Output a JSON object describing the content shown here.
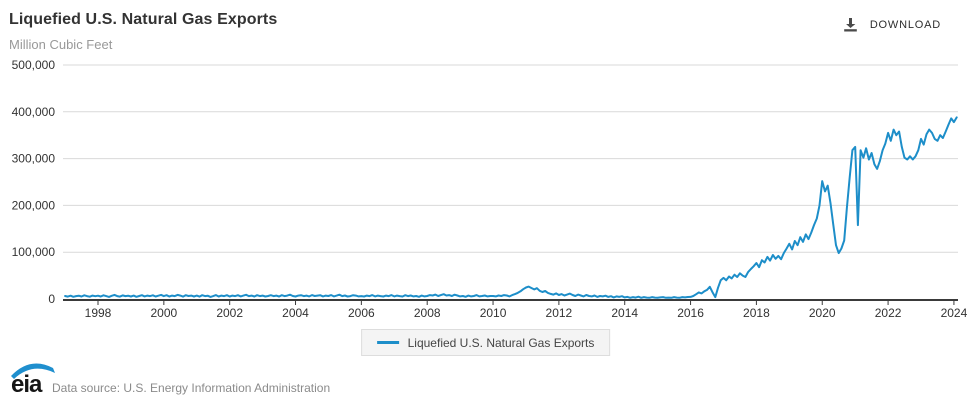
{
  "header": {
    "title": "Liquefied U.S. Natural Gas Exports",
    "subtitle": "Million Cubic Feet"
  },
  "toolbar": {
    "download_label": "DOWNLOAD"
  },
  "legend": {
    "label": "Liquefied U.S. Natural Gas Exports"
  },
  "footer": {
    "logo_text": "eia",
    "data_source": "Data source: U.S. Energy Information Administration"
  },
  "icons": {
    "download": "arrow-down-into-tray",
    "logo_swoosh": "blue-arc"
  },
  "colors": {
    "line": "#1d8ec9",
    "grid": "#d9d9d9",
    "axis": "#3a3a3a",
    "axis_label": "#333333",
    "legend_bg": "#f4f4f4",
    "legend_border": "#dddddd",
    "title": "#333333",
    "subtitle": "#999999",
    "logo_swoosh": "#1f8fce"
  },
  "chart_data": {
    "type": "line",
    "title": "Liquefied U.S. Natural Gas Exports",
    "xlabel": "",
    "ylabel": "Million Cubic Feet",
    "unit": "Million Cubic Feet",
    "grid": "horizontal",
    "legend_position": "bottom",
    "ylim": [
      0,
      500000
    ],
    "xlim_years": [
      1997,
      2024.2
    ],
    "x_tick_years": [
      1998,
      2000,
      2002,
      2004,
      2006,
      2008,
      2010,
      2012,
      2014,
      2016,
      2018,
      2020,
      2022,
      2024
    ],
    "y_ticks": [
      {
        "value": 0,
        "label": "0"
      },
      {
        "value": 100000,
        "label": "100,000"
      },
      {
        "value": 200000,
        "label": "200,000"
      },
      {
        "value": 300000,
        "label": "300,000"
      },
      {
        "value": 400000,
        "label": "400,000"
      },
      {
        "value": 500000,
        "label": "500,000"
      }
    ],
    "series": [
      {
        "name": "Liquefied U.S. Natural Gas Exports",
        "frequency": "monthly",
        "start_year": 1997,
        "start_month": 1,
        "values": [
          6500,
          5200,
          7100,
          4800,
          6300,
          7000,
          5400,
          7800,
          6100,
          5000,
          7200,
          6000,
          7100,
          5300,
          7900,
          6200,
          4500,
          6800,
          8700,
          6300,
          5100,
          7700,
          6200,
          7000,
          5400,
          7200,
          4600,
          6400,
          8100,
          5500,
          7300,
          6200,
          8000,
          5300,
          7100,
          8800,
          6300,
          8200,
          5400,
          7200,
          6100,
          8800,
          7300,
          5200,
          8100,
          6400,
          7200,
          5400,
          7300,
          5100,
          8200,
          6300,
          7100,
          4500,
          6200,
          8300,
          5400,
          7200,
          6100,
          8200,
          5300,
          7200,
          6200,
          8100,
          5500,
          7300,
          9000,
          6200,
          7300,
          5400,
          8200,
          6300,
          7200,
          5300,
          6400,
          8200,
          6300,
          7200,
          5400,
          8100,
          6200,
          7300,
          9100,
          6400,
          5400,
          7300,
          8200,
          6300,
          7200,
          5500,
          8300,
          6400,
          7200,
          8100,
          5500,
          7300,
          6400,
          8300,
          5500,
          7200,
          9200,
          6300,
          7400,
          5400,
          6300,
          8200,
          7300,
          5500,
          6200,
          5400,
          7300,
          6200,
          8400,
          5500,
          7200,
          6300,
          5400,
          7300,
          6200,
          8300,
          5500,
          7200,
          6300,
          5400,
          8200,
          6300,
          7400,
          5500,
          6400,
          4800,
          7300,
          5600,
          6400,
          8300,
          7400,
          9300,
          6500,
          8400,
          10200,
          7400,
          8300,
          6500,
          9200,
          7400,
          5600,
          6400,
          4700,
          7300,
          5500,
          6400,
          8300,
          5600,
          6500,
          7400,
          5600,
          6400,
          6500,
          5600,
          7400,
          6500,
          8400,
          7400,
          5600,
          8300,
          10500,
          13000,
          16500,
          21000,
          24500,
          26500,
          23500,
          20500,
          23000,
          17500,
          15000,
          17000,
          13000,
          11000,
          9500,
          12000,
          8500,
          10500,
          7500,
          9500,
          11500,
          8500,
          6500,
          9500,
          7500,
          5500,
          8500,
          6500,
          5500,
          7500,
          4500,
          6500,
          5500,
          7000,
          4500,
          6000,
          3500,
          5500,
          4500,
          6000,
          3500,
          4500,
          2500,
          4000,
          3000,
          5000,
          2500,
          4000,
          3000,
          2500,
          4000,
          3000,
          2500,
          3500,
          4000,
          2500,
          3000,
          2500,
          4000,
          3000,
          2500,
          4000,
          3500,
          4200,
          4500,
          6500,
          10000,
          14000,
          12000,
          16500,
          19500,
          26000,
          14500,
          4000,
          24000,
          40000,
          45000,
          40000,
          48000,
          44000,
          52000,
          47000,
          55000,
          50000,
          47000,
          58000,
          64000,
          70000,
          77000,
          68000,
          83000,
          78000,
          90000,
          82000,
          94000,
          86000,
          92000,
          85000,
          98000,
          108000,
          118000,
          106000,
          124000,
          115000,
          132000,
          122000,
          138000,
          128000,
          142000,
          158000,
          172000,
          200000,
          252000,
          230000,
          242000,
          205000,
          160000,
          115000,
          98000,
          108000,
          125000,
          195000,
          260000,
          318000,
          325000,
          158000,
          318000,
          302000,
          322000,
          298000,
          312000,
          288000,
          278000,
          295000,
          318000,
          332000,
          355000,
          338000,
          362000,
          350000,
          358000,
          325000,
          302000,
          298000,
          305000,
          298000,
          305000,
          318000,
          342000,
          330000,
          352000,
          362000,
          355000,
          342000,
          338000,
          350000,
          344000,
          358000,
          372000,
          386000,
          378000,
          388000
        ]
      }
    ]
  }
}
